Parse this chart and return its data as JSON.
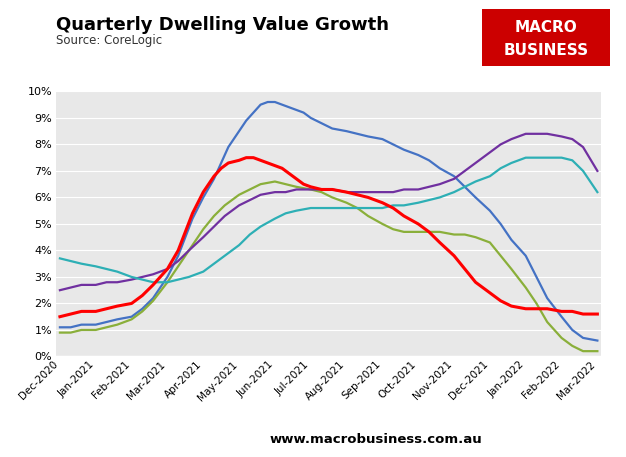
{
  "title": "Quarterly Dwelling Value Growth",
  "source": "Source: CoreLogic",
  "website": "www.macrobusiness.com.au",
  "x_labels": [
    "Dec-2020",
    "Jan-2021",
    "Feb-2021",
    "Mar-2021",
    "Apr-2021",
    "May-2021",
    "Jun-2021",
    "Jul-2021",
    "Aug-2021",
    "Sep-2021",
    "Oct-2021",
    "Nov-2021",
    "Dec-2021",
    "Jan-2022",
    "Feb-2022",
    "Mar-2022"
  ],
  "ylim": [
    0,
    0.1
  ],
  "yticks": [
    0,
    0.01,
    0.02,
    0.03,
    0.04,
    0.05,
    0.06,
    0.07,
    0.08,
    0.09,
    0.1
  ],
  "colors": {
    "Sydney": "#4472C4",
    "Melbourne": "#8AAF3A",
    "Brisbane": "#7030A0",
    "Adelaide": "#2DAFB5",
    "5-City Aggregate": "#FF0000"
  },
  "logo_color": "#CC0000",
  "logo_text_line1": "MACRO",
  "logo_text_line2": "BUSINESS",
  "plot_bg": "#E8E8E8",
  "sydney_x": [
    0,
    0.3,
    0.6,
    1.0,
    1.3,
    1.6,
    2.0,
    2.3,
    2.6,
    3.0,
    3.3,
    3.5,
    3.7,
    4.0,
    4.3,
    4.5,
    4.7,
    5.0,
    5.2,
    5.4,
    5.6,
    5.8,
    6.0,
    6.2,
    6.4,
    6.6,
    6.8,
    7.0,
    7.3,
    7.6,
    8.0,
    8.3,
    8.6,
    9.0,
    9.3,
    9.6,
    10.0,
    10.3,
    10.6,
    11.0,
    11.3,
    11.6,
    12.0,
    12.3,
    12.6,
    13.0,
    13.3,
    13.6,
    14.0,
    14.3,
    14.6,
    15.0
  ],
  "sydney_y": [
    0.011,
    0.011,
    0.012,
    0.012,
    0.013,
    0.014,
    0.015,
    0.018,
    0.022,
    0.03,
    0.038,
    0.045,
    0.052,
    0.06,
    0.067,
    0.073,
    0.079,
    0.085,
    0.089,
    0.092,
    0.095,
    0.096,
    0.096,
    0.095,
    0.094,
    0.093,
    0.092,
    0.09,
    0.088,
    0.086,
    0.085,
    0.084,
    0.083,
    0.082,
    0.08,
    0.078,
    0.076,
    0.074,
    0.071,
    0.068,
    0.064,
    0.06,
    0.055,
    0.05,
    0.044,
    0.038,
    0.03,
    0.022,
    0.015,
    0.01,
    0.007,
    0.006
  ],
  "melbourne_x": [
    0,
    0.3,
    0.6,
    1.0,
    1.3,
    1.6,
    2.0,
    2.3,
    2.6,
    3.0,
    3.3,
    3.6,
    4.0,
    4.3,
    4.6,
    5.0,
    5.3,
    5.6,
    6.0,
    6.3,
    6.6,
    7.0,
    7.3,
    7.6,
    8.0,
    8.3,
    8.6,
    9.0,
    9.3,
    9.6,
    10.0,
    10.3,
    10.6,
    11.0,
    11.3,
    11.6,
    12.0,
    12.3,
    12.6,
    13.0,
    13.3,
    13.6,
    14.0,
    14.3,
    14.6,
    15.0
  ],
  "melbourne_y": [
    0.009,
    0.009,
    0.01,
    0.01,
    0.011,
    0.012,
    0.014,
    0.017,
    0.021,
    0.028,
    0.034,
    0.04,
    0.048,
    0.053,
    0.057,
    0.061,
    0.063,
    0.065,
    0.066,
    0.065,
    0.064,
    0.063,
    0.062,
    0.06,
    0.058,
    0.056,
    0.053,
    0.05,
    0.048,
    0.047,
    0.047,
    0.047,
    0.047,
    0.046,
    0.046,
    0.045,
    0.043,
    0.038,
    0.033,
    0.026,
    0.02,
    0.013,
    0.007,
    0.004,
    0.002,
    0.002
  ],
  "brisbane_x": [
    0,
    0.3,
    0.6,
    1.0,
    1.3,
    1.6,
    2.0,
    2.3,
    2.6,
    3.0,
    3.3,
    3.6,
    4.0,
    4.3,
    4.6,
    5.0,
    5.3,
    5.6,
    6.0,
    6.3,
    6.6,
    7.0,
    7.3,
    7.6,
    8.0,
    8.3,
    8.6,
    9.0,
    9.3,
    9.6,
    10.0,
    10.3,
    10.6,
    11.0,
    11.3,
    11.6,
    12.0,
    12.3,
    12.6,
    13.0,
    13.3,
    13.6,
    14.0,
    14.3,
    14.6,
    15.0
  ],
  "brisbane_y": [
    0.025,
    0.026,
    0.027,
    0.027,
    0.028,
    0.028,
    0.029,
    0.03,
    0.031,
    0.033,
    0.036,
    0.04,
    0.045,
    0.049,
    0.053,
    0.057,
    0.059,
    0.061,
    0.062,
    0.062,
    0.063,
    0.063,
    0.063,
    0.063,
    0.062,
    0.062,
    0.062,
    0.062,
    0.062,
    0.063,
    0.063,
    0.064,
    0.065,
    0.067,
    0.07,
    0.073,
    0.077,
    0.08,
    0.082,
    0.084,
    0.084,
    0.084,
    0.083,
    0.082,
    0.079,
    0.07
  ],
  "adelaide_x": [
    0,
    0.3,
    0.6,
    1.0,
    1.3,
    1.6,
    2.0,
    2.3,
    2.6,
    3.0,
    3.3,
    3.6,
    4.0,
    4.3,
    4.6,
    5.0,
    5.3,
    5.6,
    6.0,
    6.3,
    6.6,
    7.0,
    7.3,
    7.6,
    8.0,
    8.3,
    8.6,
    9.0,
    9.3,
    9.6,
    10.0,
    10.3,
    10.6,
    11.0,
    11.3,
    11.6,
    12.0,
    12.3,
    12.6,
    13.0,
    13.3,
    13.6,
    14.0,
    14.3,
    14.6,
    15.0
  ],
  "adelaide_y": [
    0.037,
    0.036,
    0.035,
    0.034,
    0.033,
    0.032,
    0.03,
    0.029,
    0.028,
    0.028,
    0.029,
    0.03,
    0.032,
    0.035,
    0.038,
    0.042,
    0.046,
    0.049,
    0.052,
    0.054,
    0.055,
    0.056,
    0.056,
    0.056,
    0.056,
    0.056,
    0.056,
    0.056,
    0.057,
    0.057,
    0.058,
    0.059,
    0.06,
    0.062,
    0.064,
    0.066,
    0.068,
    0.071,
    0.073,
    0.075,
    0.075,
    0.075,
    0.075,
    0.074,
    0.07,
    0.062
  ],
  "aggregate_x": [
    0,
    0.3,
    0.6,
    1.0,
    1.3,
    1.6,
    2.0,
    2.3,
    2.6,
    3.0,
    3.3,
    3.5,
    3.7,
    4.0,
    4.3,
    4.5,
    4.7,
    5.0,
    5.2,
    5.4,
    5.6,
    5.8,
    6.0,
    6.2,
    6.5,
    6.8,
    7.0,
    7.3,
    7.6,
    8.0,
    8.3,
    8.6,
    9.0,
    9.3,
    9.6,
    10.0,
    10.3,
    10.6,
    11.0,
    11.3,
    11.6,
    12.0,
    12.3,
    12.6,
    13.0,
    13.3,
    13.6,
    14.0,
    14.3,
    14.6,
    15.0
  ],
  "aggregate_y": [
    0.015,
    0.016,
    0.017,
    0.017,
    0.018,
    0.019,
    0.02,
    0.023,
    0.027,
    0.033,
    0.04,
    0.047,
    0.054,
    0.062,
    0.068,
    0.071,
    0.073,
    0.074,
    0.075,
    0.075,
    0.074,
    0.073,
    0.072,
    0.071,
    0.068,
    0.065,
    0.064,
    0.063,
    0.063,
    0.062,
    0.061,
    0.06,
    0.058,
    0.056,
    0.053,
    0.05,
    0.047,
    0.043,
    0.038,
    0.033,
    0.028,
    0.024,
    0.021,
    0.019,
    0.018,
    0.018,
    0.018,
    0.017,
    0.017,
    0.016,
    0.016
  ]
}
